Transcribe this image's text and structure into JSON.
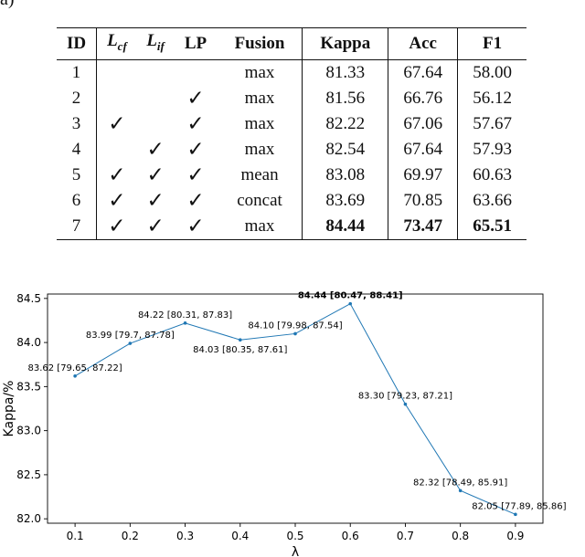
{
  "corner_label": "a)",
  "table": {
    "headers": [
      "ID",
      "L_cf",
      "L_if",
      "LP",
      "Fusion",
      "Kappa",
      "Acc",
      "F1"
    ],
    "check_mark": "✓",
    "rows": [
      {
        "id": "1",
        "l_cf": false,
        "l_if": false,
        "lp": false,
        "fusion": "max",
        "kappa": "81.33",
        "acc": "67.64",
        "f1": "58.00"
      },
      {
        "id": "2",
        "l_cf": false,
        "l_if": false,
        "lp": true,
        "fusion": "max",
        "kappa": "81.56",
        "acc": "66.76",
        "f1": "56.12"
      },
      {
        "id": "3",
        "l_cf": true,
        "l_if": false,
        "lp": true,
        "fusion": "max",
        "kappa": "82.22",
        "acc": "67.06",
        "f1": "57.67"
      },
      {
        "id": "4",
        "l_cf": false,
        "l_if": true,
        "lp": true,
        "fusion": "max",
        "kappa": "82.54",
        "acc": "67.64",
        "f1": "57.93"
      },
      {
        "id": "5",
        "l_cf": true,
        "l_if": true,
        "lp": true,
        "fusion": "mean",
        "kappa": "83.08",
        "acc": "69.97",
        "f1": "60.63"
      },
      {
        "id": "6",
        "l_cf": true,
        "l_if": true,
        "lp": true,
        "fusion": "concat",
        "kappa": "83.69",
        "acc": "70.85",
        "f1": "63.66"
      },
      {
        "id": "7",
        "l_cf": true,
        "l_if": true,
        "lp": true,
        "fusion": "max",
        "kappa": "84.44",
        "acc": "73.47",
        "f1": "65.51",
        "bold": true
      }
    ]
  },
  "chart_data": {
    "type": "line",
    "xlabel": "λ",
    "ylabel": "Kappa/%",
    "xlim": [
      0.05,
      0.95
    ],
    "ylim": [
      81.95,
      84.55
    ],
    "xticks": [
      "0.1",
      "0.2",
      "0.3",
      "0.4",
      "0.5",
      "0.6",
      "0.7",
      "0.8",
      "0.9"
    ],
    "yticks": [
      "82.0",
      "82.5",
      "83.0",
      "83.5",
      "84.0",
      "84.5"
    ],
    "grid": false,
    "color": "#1f77b4",
    "points": [
      {
        "x": 0.1,
        "y": 83.62,
        "label": "83.62 [79.65, 87.22]",
        "bold": false
      },
      {
        "x": 0.2,
        "y": 83.99,
        "label": "83.99 [79.7, 87.78]",
        "bold": false
      },
      {
        "x": 0.3,
        "y": 84.22,
        "label": "84.22 [80.31, 87.83]",
        "bold": false
      },
      {
        "x": 0.4,
        "y": 84.03,
        "label": "84.03 [80.35, 87.61]",
        "bold": false
      },
      {
        "x": 0.5,
        "y": 84.1,
        "label": "84.10 [79.98, 87.54]",
        "bold": false
      },
      {
        "x": 0.6,
        "y": 84.44,
        "label": "84.44 [80.47, 88.41]",
        "bold": true
      },
      {
        "x": 0.7,
        "y": 83.3,
        "label": "83.30 [79.23, 87.21]",
        "bold": false
      },
      {
        "x": 0.8,
        "y": 82.32,
        "label": "82.32 [78.49, 85.91]",
        "bold": false
      },
      {
        "x": 0.9,
        "y": 82.05,
        "label": "82.05 [77.89, 85.86]",
        "bold": false
      }
    ]
  }
}
